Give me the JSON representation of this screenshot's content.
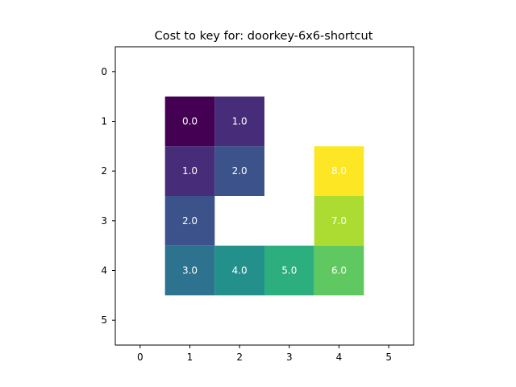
{
  "chart_data": {
    "type": "heatmap",
    "title": "Cost to key for: doorkey-6x6-shortcut",
    "xlabel": "",
    "ylabel": "",
    "x_ticks": [
      "0",
      "1",
      "2",
      "3",
      "4",
      "5"
    ],
    "y_ticks": [
      "0",
      "1",
      "2",
      "3",
      "4",
      "5"
    ],
    "xlim": [
      -0.5,
      5.5
    ],
    "ylim": [
      5.5,
      -0.5
    ],
    "grid": false,
    "colormap": "viridis",
    "value_range": [
      0,
      8
    ],
    "cells": [
      {
        "row": 1,
        "col": 1,
        "value": 0.0,
        "label": "0.0"
      },
      {
        "row": 1,
        "col": 2,
        "value": 1.0,
        "label": "1.0"
      },
      {
        "row": 2,
        "col": 1,
        "value": 1.0,
        "label": "1.0"
      },
      {
        "row": 2,
        "col": 2,
        "value": 2.0,
        "label": "2.0"
      },
      {
        "row": 2,
        "col": 4,
        "value": 8.0,
        "label": "8.0"
      },
      {
        "row": 3,
        "col": 1,
        "value": 2.0,
        "label": "2.0"
      },
      {
        "row": 3,
        "col": 4,
        "value": 7.0,
        "label": "7.0"
      },
      {
        "row": 4,
        "col": 1,
        "value": 3.0,
        "label": "3.0"
      },
      {
        "row": 4,
        "col": 2,
        "value": 4.0,
        "label": "4.0"
      },
      {
        "row": 4,
        "col": 3,
        "value": 5.0,
        "label": "5.0"
      },
      {
        "row": 4,
        "col": 4,
        "value": 6.0,
        "label": "6.0"
      }
    ]
  }
}
